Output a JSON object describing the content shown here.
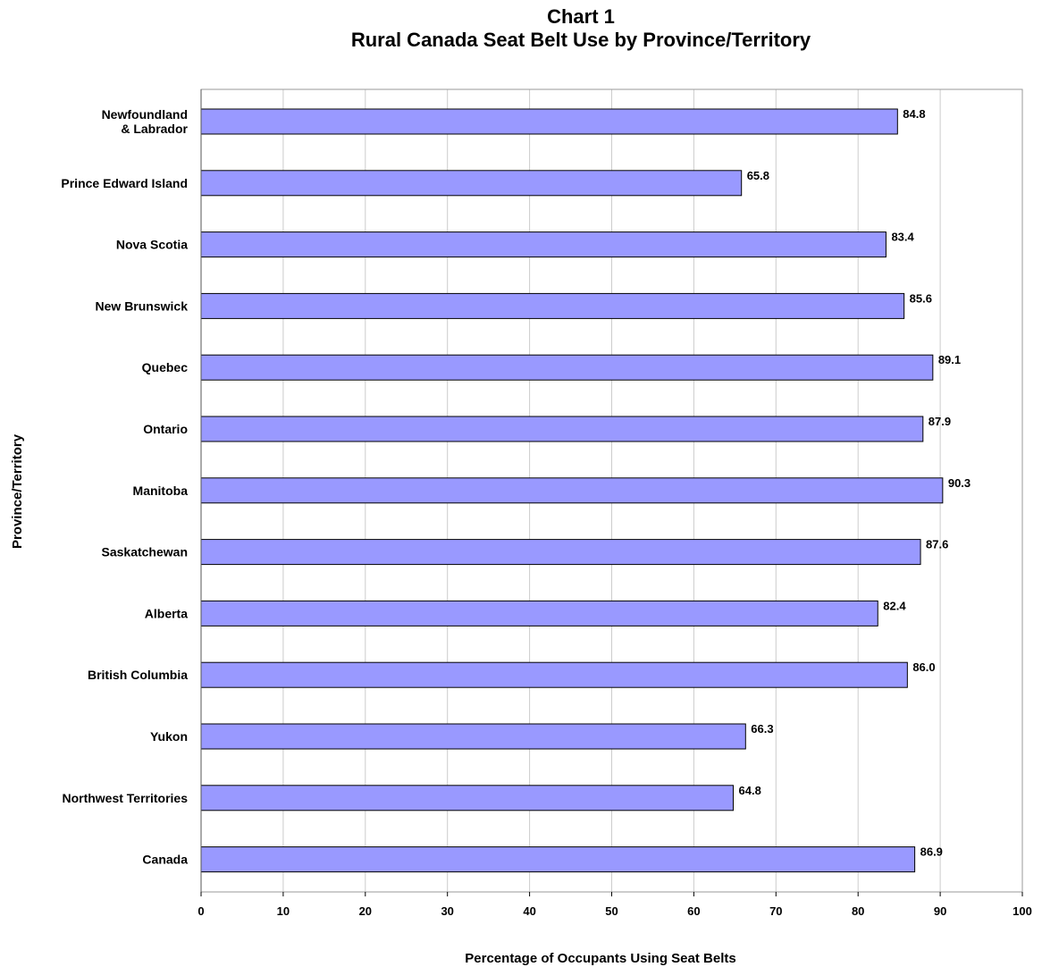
{
  "chart_data": {
    "type": "bar",
    "orientation": "horizontal",
    "title": "Chart 1",
    "subtitle": "Rural Canada Seat Belt Use by Province/Territory",
    "xlabel": "Percentage of Occupants Using Seat Belts",
    "ylabel": "Province/Territory",
    "categories": [
      "Newfoundland\n& Labrador",
      "Prince Edward Island",
      "Nova Scotia",
      "New Brunswick",
      "Quebec",
      "Ontario",
      "Manitoba",
      "Saskatchewan",
      "Alberta",
      "British Columbia",
      "Yukon",
      "Northwest Territories",
      "Canada"
    ],
    "values": [
      84.8,
      65.8,
      83.4,
      85.6,
      89.1,
      87.9,
      90.3,
      87.6,
      82.4,
      86.0,
      66.3,
      64.8,
      86.9
    ],
    "value_labels": [
      "84.8",
      "65.8",
      "83.4",
      "85.6",
      "89.1",
      "87.9",
      "90.3",
      "87.6",
      "82.4",
      "86.0",
      "66.3",
      "64.8",
      "86.9"
    ],
    "xlim": [
      0,
      100
    ],
    "xticks": [
      0,
      10,
      20,
      30,
      40,
      50,
      60,
      70,
      80,
      90,
      100
    ],
    "grid": true,
    "legend": "none",
    "colors": {
      "bar_fill": "#9999ff",
      "bar_stroke": "#000000",
      "grid": "#cccccc",
      "frame": "#999999"
    }
  }
}
